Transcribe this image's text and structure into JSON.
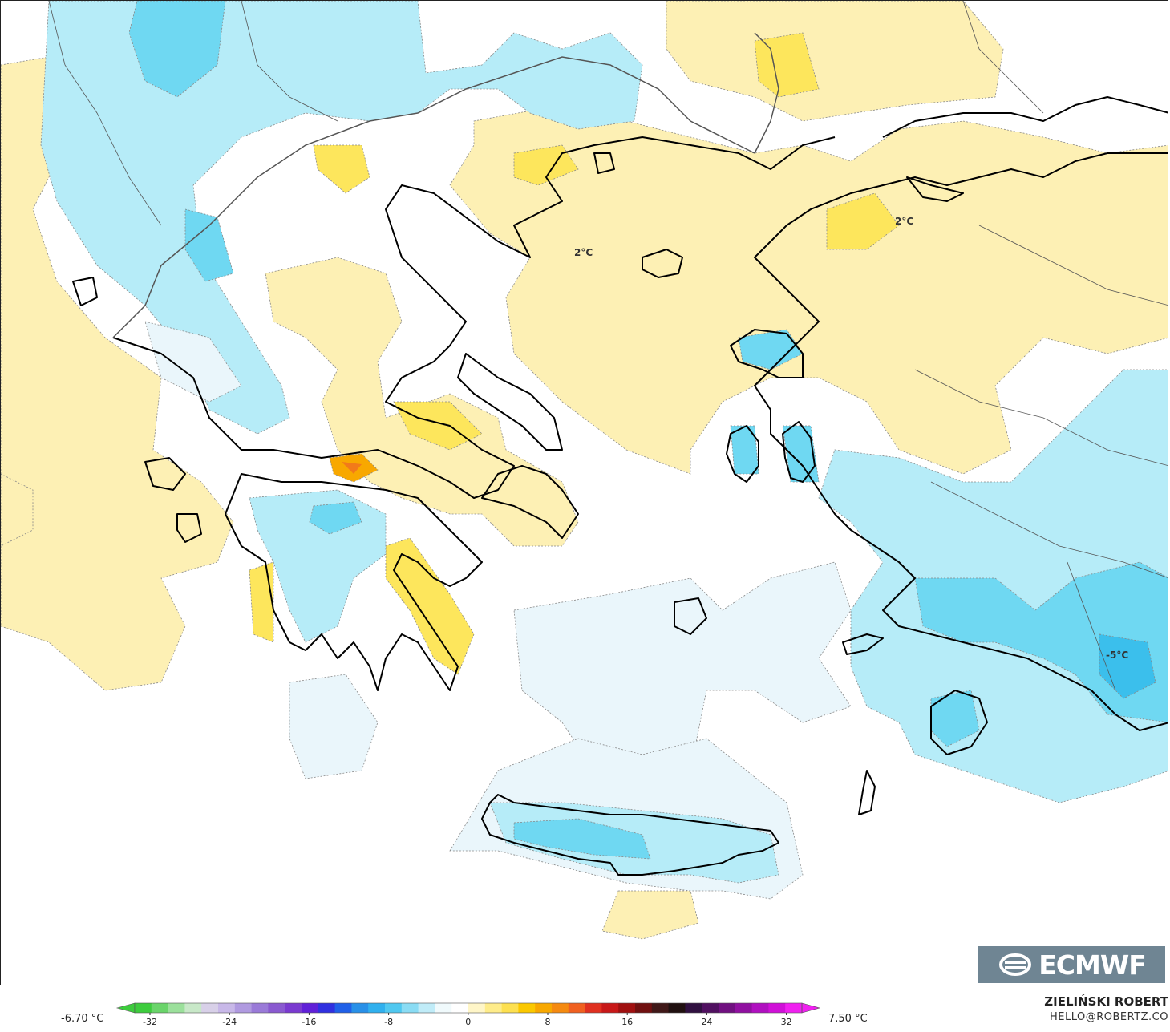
{
  "map": {
    "region": "Greece and Aegean Sea",
    "contour_labels": [
      "2°C",
      "2°C",
      "-5°C"
    ],
    "colors": {
      "land_outline": "#000000",
      "border": "#555555",
      "warm_light": "#fdf0b4",
      "warm_mid": "#fde65c",
      "warm_strong": "#fbc500",
      "warm_hot": "#f27a1a",
      "cold_pale": "#eaf6fb",
      "cold_light": "#b6ecf8",
      "cold_mid": "#6fd8f2",
      "cold_strong": "#3bbfec",
      "neutral": "#ffffff"
    }
  },
  "logo": {
    "text": "ECMWF",
    "icon": "ecmwf-logo-icon"
  },
  "colorbar": {
    "min_label": "-6.70 °C",
    "max_label": "7.50 °C",
    "ticks": [
      "-32",
      "-24",
      "-16",
      "-8",
      "0",
      "8",
      "16",
      "24",
      "32"
    ],
    "colors": [
      "#3dcc3d",
      "#6ad46a",
      "#9be09b",
      "#c8e8c8",
      "#d8d0e8",
      "#c8b8e8",
      "#b09ae0",
      "#9a7ad8",
      "#8a5ad0",
      "#7a3ad0",
      "#6020d8",
      "#3030e0",
      "#2060e8",
      "#2890e8",
      "#30b0ee",
      "#50c8f0",
      "#8adcf4",
      "#c0ecf8",
      "#f0fafc",
      "#ffffff",
      "#fff6c8",
      "#feec8a",
      "#fde050",
      "#fbc800",
      "#f8a800",
      "#f58a10",
      "#f06020",
      "#e03020",
      "#c81818",
      "#a01010",
      "#701010",
      "#401818",
      "#201010",
      "#301040",
      "#501060",
      "#701080",
      "#9010a0",
      "#b010c0",
      "#d010d8",
      "#f020f0"
    ]
  },
  "credits": {
    "name": "ZIELIŃSKI ROBERT",
    "email": "HELLO@ROBERTZ.CO"
  }
}
